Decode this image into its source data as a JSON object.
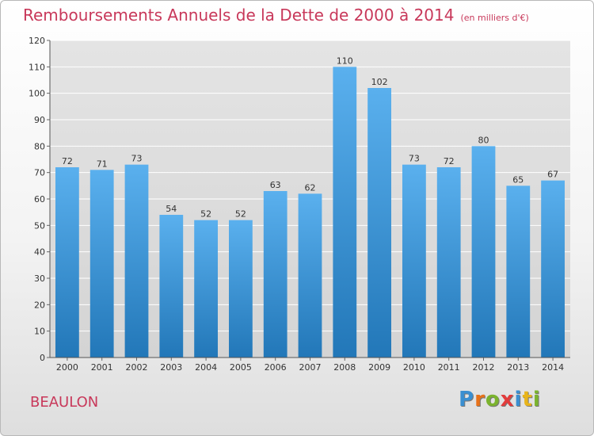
{
  "title": "Remboursements Annuels de la Dette de 2000 à 2014",
  "unit": "(en milliers d'€)",
  "town": "BEAULON",
  "brand": {
    "letters": [
      "P",
      "r",
      "o",
      "x",
      "i",
      "t",
      "i"
    ],
    "colors": [
      "#3a8fd1",
      "#e8721a",
      "#7bb32e",
      "#e23c3c",
      "#3a8fd1",
      "#e8b41a",
      "#7bb32e"
    ]
  },
  "colors": {
    "title": "#c8385a",
    "bar_top": "#5ab0ee",
    "bar_bottom": "#2277b8"
  },
  "chart_data": {
    "type": "bar",
    "categories": [
      "2000",
      "2001",
      "2002",
      "2003",
      "2004",
      "2005",
      "2006",
      "2007",
      "2008",
      "2009",
      "2010",
      "2011",
      "2012",
      "2013",
      "2014"
    ],
    "values": [
      72,
      71,
      73,
      54,
      52,
      52,
      63,
      62,
      110,
      102,
      73,
      72,
      80,
      65,
      67
    ],
    "title": "Remboursements Annuels de la Dette de 2000 à 2014",
    "xlabel": "",
    "ylabel": "",
    "ylim": [
      0,
      120
    ],
    "yticks": [
      0,
      10,
      20,
      30,
      40,
      50,
      60,
      70,
      80,
      90,
      100,
      110,
      120
    ],
    "grid": true,
    "data_labels": true
  }
}
